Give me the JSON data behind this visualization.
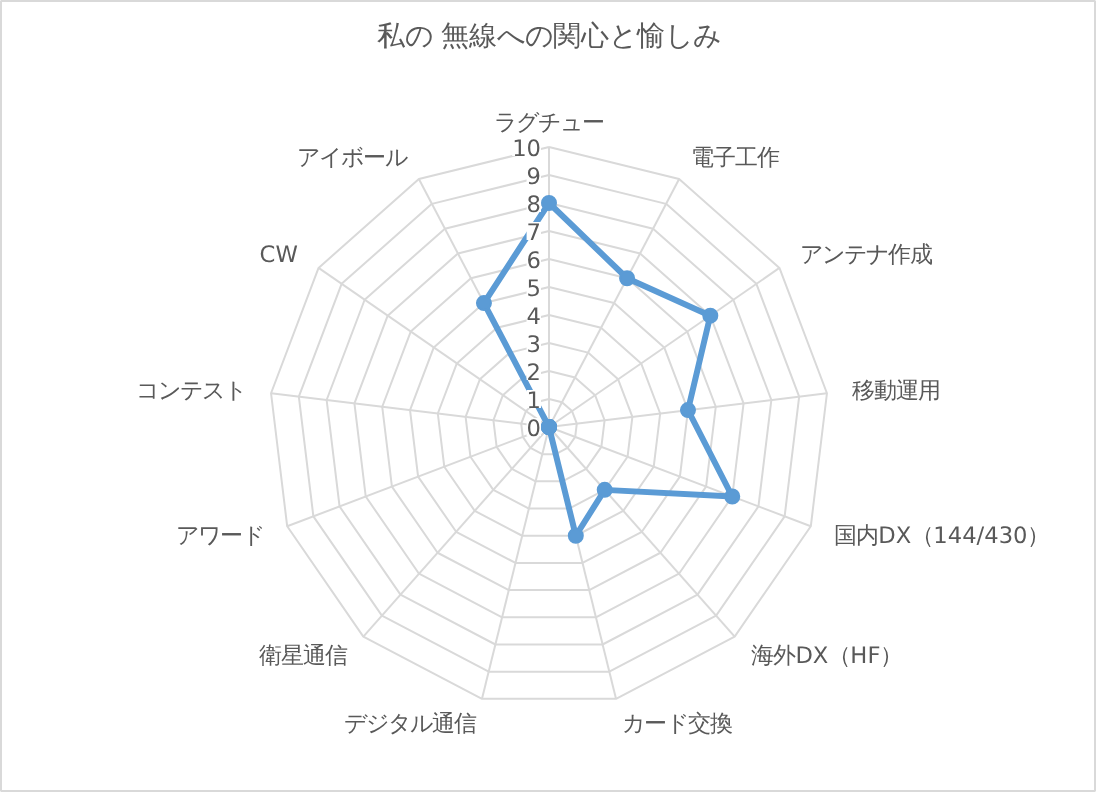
{
  "chart_data": {
    "type": "radar",
    "title": "私の 無線への関心と愉しみ",
    "categories": [
      "ラグチュー",
      "電子工作",
      "アンテナ作成",
      "移動運用",
      "国内DX（144/430）",
      "海外DX（HF）",
      "カード交換",
      "デジタル通信",
      "衛星通信",
      "アワード",
      "コンテスト",
      "CW",
      "アイボール"
    ],
    "series": [
      {
        "color": "#5b9bd5",
        "values": [
          8,
          6,
          7,
          5,
          7,
          3,
          4,
          0,
          0,
          0,
          0,
          0,
          5
        ]
      }
    ],
    "ylim": [
      0,
      10
    ],
    "yticks": [
      0,
      1,
      2,
      3,
      4,
      5,
      6,
      7,
      8,
      9,
      10
    ],
    "grid": true,
    "marker": "circle"
  }
}
